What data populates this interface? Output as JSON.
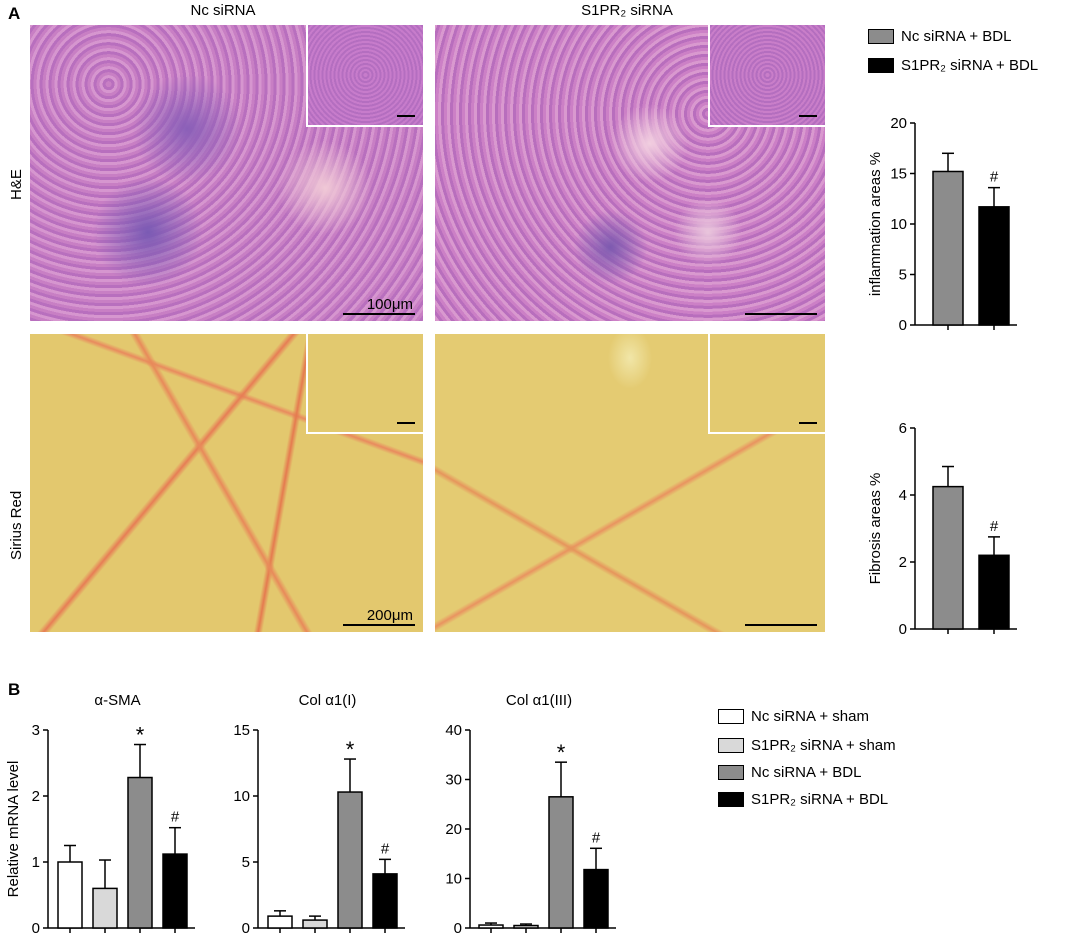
{
  "panels": {
    "a": "A",
    "b": "B"
  },
  "micrographs": {
    "columns": [
      "Nc siRNA",
      "S1PR₂ siRNA"
    ],
    "rows": [
      "H&E",
      "Sirius Red"
    ],
    "scale_he": "100μm",
    "scale_sr": "200μm"
  },
  "legend_a": [
    {
      "label": "Nc siRNA + BDL",
      "color": "#8c8c8c"
    },
    {
      "label": "S1PR₂ siRNA + BDL",
      "color": "#000000"
    }
  ],
  "legend_b": [
    {
      "label": "Nc siRNA + sham",
      "color": "#ffffff"
    },
    {
      "label": "S1PR₂ siRNA + sham",
      "color": "#d9d9d9"
    },
    {
      "label": "Nc siRNA + BDL",
      "color": "#8c8c8c"
    },
    {
      "label": "S1PR₂ siRNA + BDL",
      "color": "#000000"
    }
  ],
  "chart_data": [
    {
      "type": "bar",
      "id": "inflammation",
      "title": "",
      "xlabel": "",
      "ylabel": "inflammation areas %",
      "ylim": [
        0,
        20
      ],
      "yticks": [
        0,
        5,
        10,
        15,
        20
      ],
      "values": [
        15.2,
        11.7
      ],
      "errors": [
        1.8,
        1.9
      ],
      "colors": [
        "#8c8c8c",
        "#000000"
      ],
      "annotations": [
        "",
        "#"
      ]
    },
    {
      "type": "bar",
      "id": "fibrosis",
      "title": "",
      "xlabel": "",
      "ylabel": "Fibrosis areas %",
      "ylim": [
        0,
        6
      ],
      "yticks": [
        0,
        2,
        4,
        6
      ],
      "values": [
        4.25,
        2.2
      ],
      "errors": [
        0.6,
        0.55
      ],
      "colors": [
        "#8c8c8c",
        "#000000"
      ],
      "annotations": [
        "",
        "#"
      ]
    },
    {
      "type": "bar",
      "id": "asma",
      "title": "α-SMA",
      "xlabel": "",
      "ylabel": "Relative mRNA level",
      "ylim": [
        0,
        3
      ],
      "yticks": [
        0,
        1,
        2,
        3
      ],
      "values": [
        1.0,
        0.6,
        2.28,
        1.12
      ],
      "errors": [
        0.25,
        0.43,
        0.5,
        0.4
      ],
      "colors": [
        "#ffffff",
        "#d9d9d9",
        "#8c8c8c",
        "#000000"
      ],
      "annotations": [
        "",
        "",
        "*",
        "#"
      ]
    },
    {
      "type": "bar",
      "id": "col1",
      "title": "Col α1(I)",
      "xlabel": "",
      "ylabel": "",
      "ylim": [
        0,
        15
      ],
      "yticks": [
        0,
        5,
        10,
        15
      ],
      "values": [
        0.9,
        0.6,
        10.3,
        4.1
      ],
      "errors": [
        0.4,
        0.3,
        2.5,
        1.1
      ],
      "colors": [
        "#ffffff",
        "#d9d9d9",
        "#8c8c8c",
        "#000000"
      ],
      "annotations": [
        "",
        "",
        "*",
        "#"
      ]
    },
    {
      "type": "bar",
      "id": "col3",
      "title": "Col α1(III)",
      "xlabel": "",
      "ylabel": "",
      "ylim": [
        0,
        40
      ],
      "yticks": [
        0,
        10,
        20,
        30,
        40
      ],
      "values": [
        0.6,
        0.5,
        26.5,
        11.8
      ],
      "errors": [
        0.4,
        0.3,
        7.0,
        4.3
      ],
      "colors": [
        "#ffffff",
        "#d9d9d9",
        "#8c8c8c",
        "#000000"
      ],
      "annotations": [
        "",
        "",
        "*",
        "#"
      ]
    }
  ]
}
